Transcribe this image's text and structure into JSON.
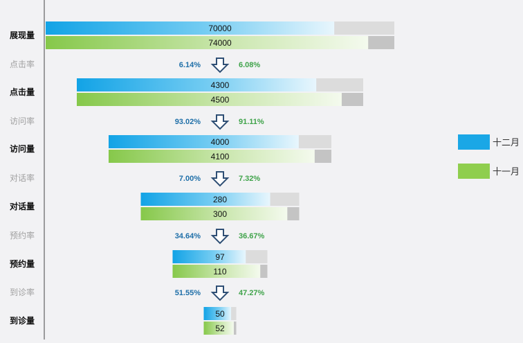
{
  "chart_data": {
    "type": "bar",
    "chart_style": "funnel comparison",
    "categories": [
      "展现量",
      "点击量",
      "访问量",
      "对话量",
      "预约量",
      "到诊量"
    ],
    "rate_labels": [
      "点击率",
      "访问率",
      "对话率",
      "预约率",
      "到诊率"
    ],
    "series": [
      {
        "name": "十二月",
        "values": [
          70000,
          4300,
          4000,
          280,
          97,
          50
        ],
        "rates": [
          "6.14%",
          "93.02%",
          "7.00%",
          "34.64%",
          "51.55%"
        ],
        "color": "#1aa7e6"
      },
      {
        "name": "十一月",
        "values": [
          74000,
          4500,
          4100,
          300,
          110,
          52
        ],
        "rates": [
          "6.08%",
          "91.11%",
          "7.32%",
          "36.67%",
          "47.27%"
        ],
        "color": "#8fce4e"
      }
    ],
    "colors": {
      "track_top": "#dcdcdc",
      "track_bottom": "#c4c4c4",
      "rate_left": "#1f6fa8",
      "rate_right": "#3fa34a",
      "arrow": "#2f4f75"
    },
    "legend_position": "right",
    "grid": false,
    "icon": "down-arrow-icon"
  }
}
